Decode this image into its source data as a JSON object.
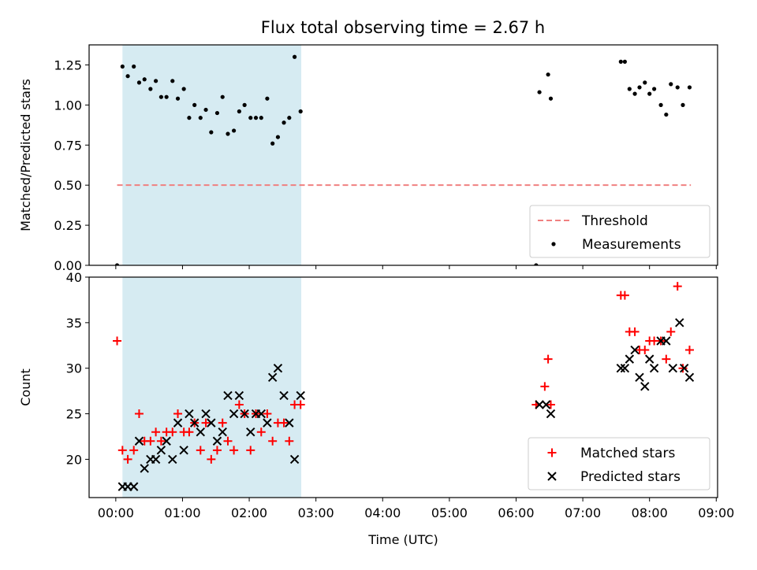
{
  "title": "Flux total observing time = 2.67 h",
  "colors": {
    "threshold": "#f08080",
    "shade": "#add8e6",
    "measurements": "#000000",
    "matched": "#ff0000",
    "predicted": "#000000"
  },
  "chart_data": [
    {
      "type": "scatter",
      "panel": "top",
      "ylabel": "Matched/Predicted stars",
      "xlabel": "",
      "x_unit": "hours since 00:00 UTC",
      "ylim": [
        0.0,
        1.375
      ],
      "xlim": [
        -0.4,
        9.02
      ],
      "yticks": [
        0.0,
        0.25,
        0.5,
        0.75,
        1.0,
        1.25
      ],
      "ytick_labels": [
        "0.00",
        "0.25",
        "0.50",
        "0.75",
        "1.00",
        "1.25"
      ],
      "shaded_region": {
        "x0": 0.1,
        "x1": 2.78
      },
      "legend": {
        "position": "lower right",
        "entries": [
          "Threshold",
          "Measurements"
        ]
      },
      "threshold": {
        "name": "Threshold",
        "y": 0.5,
        "x0": 0.02,
        "x1": 8.62,
        "style": "dashed"
      },
      "series": [
        {
          "name": "Measurements",
          "marker": "dot",
          "points": [
            [
              0.02,
              0.0
            ],
            [
              0.1,
              1.24
            ],
            [
              0.18,
              1.18
            ],
            [
              0.27,
              1.24
            ],
            [
              0.35,
              1.14
            ],
            [
              0.43,
              1.16
            ],
            [
              0.52,
              1.1
            ],
            [
              0.6,
              1.15
            ],
            [
              0.68,
              1.05
            ],
            [
              0.76,
              1.05
            ],
            [
              0.85,
              1.15
            ],
            [
              0.93,
              1.04
            ],
            [
              1.02,
              1.1
            ],
            [
              1.1,
              0.92
            ],
            [
              1.18,
              1.0
            ],
            [
              1.27,
              0.92
            ],
            [
              1.35,
              0.97
            ],
            [
              1.43,
              0.83
            ],
            [
              1.52,
              0.95
            ],
            [
              1.6,
              1.05
            ],
            [
              1.68,
              0.82
            ],
            [
              1.77,
              0.84
            ],
            [
              1.85,
              0.96
            ],
            [
              1.93,
              1.0
            ],
            [
              2.02,
              0.92
            ],
            [
              2.1,
              0.92
            ],
            [
              2.18,
              0.92
            ],
            [
              2.27,
              1.04
            ],
            [
              2.35,
              0.76
            ],
            [
              2.43,
              0.8
            ],
            [
              2.52,
              0.89
            ],
            [
              2.6,
              0.92
            ],
            [
              2.68,
              1.3
            ],
            [
              2.77,
              0.96
            ],
            [
              6.3,
              0.0
            ],
            [
              6.35,
              1.08
            ],
            [
              6.48,
              1.19
            ],
            [
              6.52,
              1.04
            ],
            [
              7.57,
              1.27
            ],
            [
              7.63,
              1.27
            ],
            [
              7.7,
              1.1
            ],
            [
              7.78,
              1.07
            ],
            [
              7.85,
              1.11
            ],
            [
              7.93,
              1.14
            ],
            [
              8.0,
              1.07
            ],
            [
              8.07,
              1.1
            ],
            [
              8.17,
              1.0
            ],
            [
              8.25,
              0.94
            ],
            [
              8.32,
              1.13
            ],
            [
              8.42,
              1.11
            ],
            [
              8.5,
              1.0
            ],
            [
              8.6,
              1.11
            ]
          ]
        }
      ]
    },
    {
      "type": "scatter",
      "panel": "bottom",
      "ylabel": "Count",
      "xlabel": "Time (UTC)",
      "x_unit": "hours since 00:00 UTC",
      "ylim": [
        15.8,
        40
      ],
      "xlim": [
        -0.4,
        9.02
      ],
      "yticks": [
        20,
        25,
        30,
        35,
        40
      ],
      "ytick_labels": [
        "20",
        "25",
        "30",
        "35",
        "40"
      ],
      "xticks": [
        0,
        1,
        2,
        3,
        4,
        5,
        6,
        7,
        8,
        9
      ],
      "xtick_labels": [
        "00:00",
        "01:00",
        "02:00",
        "03:00",
        "04:00",
        "05:00",
        "06:00",
        "07:00",
        "08:00",
        "09:00"
      ],
      "shaded_region": {
        "x0": 0.1,
        "x1": 2.78
      },
      "legend": {
        "position": "lower right",
        "entries": [
          "Matched stars",
          "Predicted stars"
        ]
      },
      "series": [
        {
          "name": "Matched stars",
          "marker": "plus",
          "points": [
            [
              0.02,
              33
            ],
            [
              0.1,
              21
            ],
            [
              0.18,
              20
            ],
            [
              0.27,
              21
            ],
            [
              0.35,
              25
            ],
            [
              0.43,
              22
            ],
            [
              0.52,
              22
            ],
            [
              0.6,
              23
            ],
            [
              0.68,
              22
            ],
            [
              0.76,
              23
            ],
            [
              0.85,
              23
            ],
            [
              0.93,
              25
            ],
            [
              1.02,
              23
            ],
            [
              1.1,
              23
            ],
            [
              1.18,
              24
            ],
            [
              1.27,
              21
            ],
            [
              1.35,
              24
            ],
            [
              1.43,
              20
            ],
            [
              1.52,
              21
            ],
            [
              1.6,
              24
            ],
            [
              1.68,
              22
            ],
            [
              1.77,
              21
            ],
            [
              1.85,
              26
            ],
            [
              1.93,
              25
            ],
            [
              2.02,
              21
            ],
            [
              2.1,
              25
            ],
            [
              2.18,
              23
            ],
            [
              2.27,
              25
            ],
            [
              2.35,
              22
            ],
            [
              2.43,
              24
            ],
            [
              2.52,
              24
            ],
            [
              2.6,
              22
            ],
            [
              2.68,
              26
            ],
            [
              2.77,
              26
            ],
            [
              6.3,
              26
            ],
            [
              6.43,
              28
            ],
            [
              6.48,
              31
            ],
            [
              6.52,
              26
            ],
            [
              7.57,
              38
            ],
            [
              7.63,
              38
            ],
            [
              7.7,
              34
            ],
            [
              7.78,
              34
            ],
            [
              7.85,
              32
            ],
            [
              7.93,
              32
            ],
            [
              8.0,
              33
            ],
            [
              8.07,
              33
            ],
            [
              8.17,
              33
            ],
            [
              8.25,
              31
            ],
            [
              8.32,
              34
            ],
            [
              8.42,
              39
            ],
            [
              8.5,
              30
            ],
            [
              8.6,
              32
            ]
          ]
        },
        {
          "name": "Predicted stars",
          "marker": "x",
          "points": [
            [
              0.1,
              17
            ],
            [
              0.18,
              17
            ],
            [
              0.27,
              17
            ],
            [
              0.35,
              22
            ],
            [
              0.43,
              19
            ],
            [
              0.52,
              20
            ],
            [
              0.6,
              20
            ],
            [
              0.68,
              21
            ],
            [
              0.76,
              22
            ],
            [
              0.85,
              20
            ],
            [
              0.93,
              24
            ],
            [
              1.02,
              21
            ],
            [
              1.1,
              25
            ],
            [
              1.18,
              24
            ],
            [
              1.27,
              23
            ],
            [
              1.35,
              25
            ],
            [
              1.43,
              24
            ],
            [
              1.52,
              22
            ],
            [
              1.6,
              23
            ],
            [
              1.68,
              27
            ],
            [
              1.77,
              25
            ],
            [
              1.85,
              27
            ],
            [
              1.93,
              25
            ],
            [
              2.02,
              23
            ],
            [
              2.1,
              25
            ],
            [
              2.18,
              25
            ],
            [
              2.27,
              24
            ],
            [
              2.35,
              29
            ],
            [
              2.43,
              30
            ],
            [
              2.52,
              27
            ],
            [
              2.6,
              24
            ],
            [
              2.68,
              20
            ],
            [
              2.77,
              27
            ],
            [
              6.35,
              26
            ],
            [
              6.45,
              26
            ],
            [
              6.52,
              25
            ],
            [
              7.57,
              30
            ],
            [
              7.63,
              30
            ],
            [
              7.7,
              31
            ],
            [
              7.78,
              32
            ],
            [
              7.85,
              29
            ],
            [
              7.93,
              28
            ],
            [
              8.0,
              31
            ],
            [
              8.07,
              30
            ],
            [
              8.17,
              33
            ],
            [
              8.25,
              33
            ],
            [
              8.35,
              30
            ],
            [
              8.45,
              35
            ],
            [
              8.52,
              30
            ],
            [
              8.6,
              29
            ]
          ]
        }
      ]
    }
  ]
}
